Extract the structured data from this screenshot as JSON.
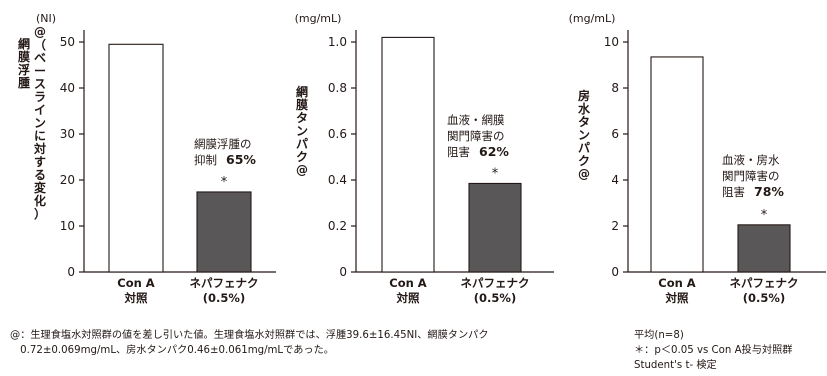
{
  "chart_data": [
    {
      "type": "bar",
      "unit": "(NI)",
      "ylabel": "網膜浮腫@（ベースラインに対する変化）",
      "ylim": [
        0,
        50
      ],
      "yticks": [
        "0",
        "10",
        "20",
        "30",
        "40",
        "50"
      ],
      "categories": [
        [
          "Con A",
          "対照"
        ],
        [
          "ネパフェナク",
          "(0.5%)"
        ]
      ],
      "values": [
        49.5,
        17.4
      ],
      "colors": [
        "#ffffff",
        "#595757"
      ],
      "significance": [
        "",
        "*"
      ],
      "annotation": {
        "lines": [
          "網膜浮腫の",
          "抑制"
        ],
        "value": "65%"
      }
    },
    {
      "type": "bar",
      "unit": "(mg/mL)",
      "ylabel": "網膜タンパク@",
      "ylim": [
        0,
        1.0
      ],
      "yticks": [
        "0",
        "0.2",
        "0.4",
        "0.6",
        "0.8",
        "1.0"
      ],
      "categories": [
        [
          "Con A",
          "対照"
        ],
        [
          "ネパフェナク",
          "(0.5%)"
        ]
      ],
      "values": [
        1.02,
        0.385
      ],
      "colors": [
        "#ffffff",
        "#595757"
      ],
      "significance": [
        "",
        "*"
      ],
      "annotation": {
        "lines": [
          "血液・網膜",
          "関門障害の",
          "阻害"
        ],
        "value": "62%"
      }
    },
    {
      "type": "bar",
      "unit": "(mg/mL)",
      "ylabel": "房水タンパク@",
      "ylim": [
        0,
        10
      ],
      "yticks": [
        "0",
        "2",
        "4",
        "6",
        "8",
        "10"
      ],
      "categories": [
        [
          "Con A",
          "対照"
        ],
        [
          "ネパフェナク",
          "(0.5%)"
        ]
      ],
      "values": [
        9.35,
        2.05
      ],
      "colors": [
        "#ffffff",
        "#595757"
      ],
      "significance": [
        "",
        "*"
      ],
      "annotation": {
        "lines": [
          "血液・房水",
          "関門障害の",
          "阻害"
        ],
        "value": "78%"
      }
    }
  ],
  "footnote": "@：生理食塩水対照群の値を差し引いた値。生理食塩水対照群では、浮腫39.6±16.45NI、網膜タンパク\n　0.72±0.069mg/mL、房水タンパク0.46±0.061mg/mLであった。",
  "stats_note": "平均(n=8)\n＊：p＜0.05 vs Con A投与対照群\nStudent's t- 検定"
}
